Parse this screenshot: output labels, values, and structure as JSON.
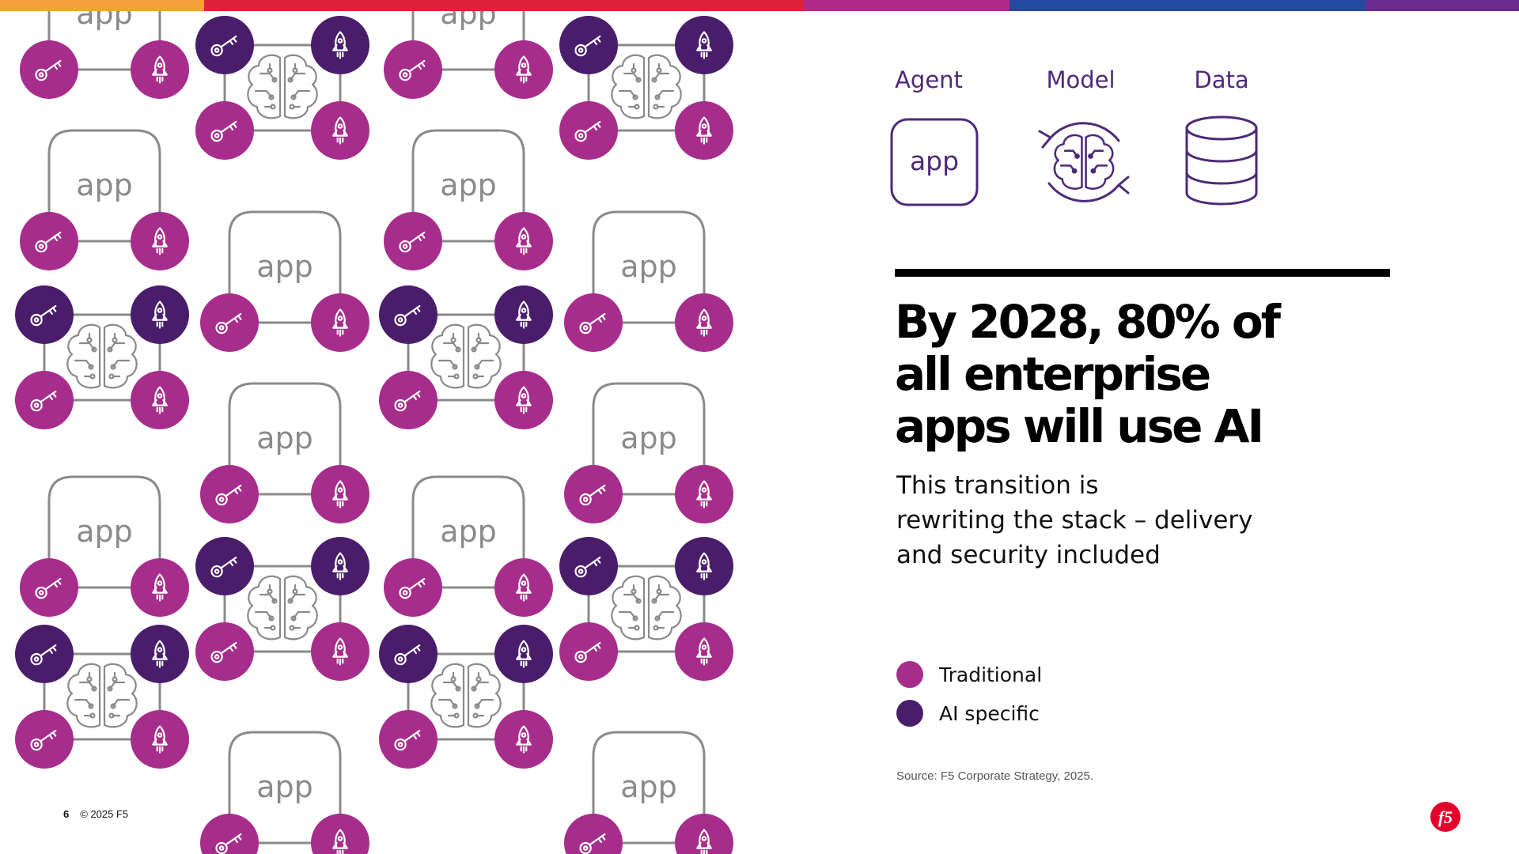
{
  "colors": {
    "traditional": "#a72d8c",
    "ai_specific": "#4a1d6b",
    "accent_purple": "#4d2a77",
    "outline_gray": "#8a8a8a",
    "top_bar": [
      "#f5a03a",
      "#e0213a",
      "#b02a8a",
      "#234aa0",
      "#6a2c90"
    ]
  },
  "diagram": {
    "app_label": "app",
    "icons": {
      "key": "key-icon",
      "rocket": "rocket-icon",
      "brain": "brain-icon"
    }
  },
  "legend_top": {
    "agent": {
      "label": "Agent",
      "box_text": "app"
    },
    "model": {
      "label": "Model"
    },
    "data": {
      "label": "Data"
    }
  },
  "headline": {
    "line1": "By 2028, 80% of",
    "line2": "all enterprise",
    "line3": "apps will use AI"
  },
  "subtext": {
    "line1": "This transition is",
    "line2": "rewriting the stack – delivery",
    "line3": "and security included"
  },
  "legend": {
    "traditional": "Traditional",
    "ai_specific": "AI specific"
  },
  "source": "Source: F5 Corporate Strategy, 2025.",
  "footer": {
    "page_number": "6",
    "copyright": "© 2025 F5"
  },
  "logo_text": "f5"
}
